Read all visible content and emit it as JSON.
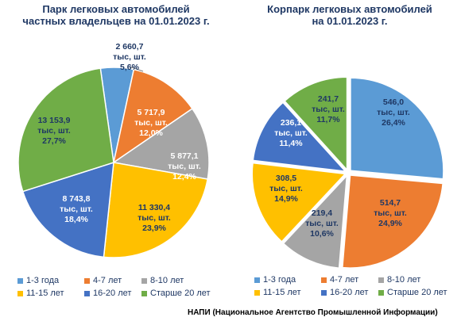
{
  "colors": {
    "blue": "#5b9bd5",
    "orange": "#ed7d31",
    "gray": "#a5a5a5",
    "yellow": "#ffc000",
    "darkblue": "#4472c4",
    "green": "#70ad47",
    "title": "#1f3864"
  },
  "footer": "НАПИ (Национальное Агентство Промышленной Информации)",
  "chart_data": [
    {
      "type": "pie",
      "title": [
        "Парк легковых автомобилей",
        "частных владельцев на 01.01.2023 г."
      ],
      "unit": "тыс, шт.",
      "legend_position": "bottom",
      "slices": [
        {
          "name": "1-3 года",
          "value": 2660.7,
          "value_text": "2 660,7",
          "percent_text": "5,6%",
          "color": "#5b9bd5"
        },
        {
          "name": "4-7 лет",
          "value": 5717.9,
          "value_text": "5 717,9",
          "percent_text": "12,0%",
          "color": "#ed7d31"
        },
        {
          "name": "8-10 лет",
          "value": 5877.1,
          "value_text": "5 877,1",
          "percent_text": "12,4%",
          "color": "#a5a5a5"
        },
        {
          "name": "11-15 лет",
          "value": 11330.4,
          "value_text": "11 330,4",
          "percent_text": "23,9%",
          "color": "#ffc000"
        },
        {
          "name": "16-20 лет",
          "value": 8743.8,
          "value_text": "8 743,8",
          "percent_text": "18,4%",
          "color": "#4472c4"
        },
        {
          "name": "Старше 20 лет",
          "value": 13153.9,
          "value_text": "13 153,9",
          "percent_text": "27,7%",
          "color": "#70ad47"
        }
      ]
    },
    {
      "type": "pie",
      "title": [
        "Корпарк легковых автомобилей",
        "на 01.01.2023 г."
      ],
      "unit": "тыс, шт.",
      "legend_position": "bottom",
      "slices": [
        {
          "name": "1-3 года",
          "value": 546.0,
          "value_text": "546,0",
          "percent_text": "26,4%",
          "color": "#5b9bd5"
        },
        {
          "name": "4-7 лет",
          "value": 514.7,
          "value_text": "514,7",
          "percent_text": "24,9%",
          "color": "#ed7d31"
        },
        {
          "name": "8-10 лет",
          "value": 219.4,
          "value_text": "219,4",
          "percent_text": "10,6%",
          "color": "#a5a5a5"
        },
        {
          "name": "11-15 лет",
          "value": 308.5,
          "value_text": "308,5",
          "percent_text": "14,9%",
          "color": "#ffc000"
        },
        {
          "name": "16-20 лет",
          "value": 236.1,
          "value_text": "236,1",
          "percent_text": "11,4%",
          "color": "#4472c4"
        },
        {
          "name": "Старше 20 лет",
          "value": 241.7,
          "value_text": "241,7",
          "percent_text": "11,7%",
          "color": "#70ad47"
        }
      ]
    }
  ]
}
